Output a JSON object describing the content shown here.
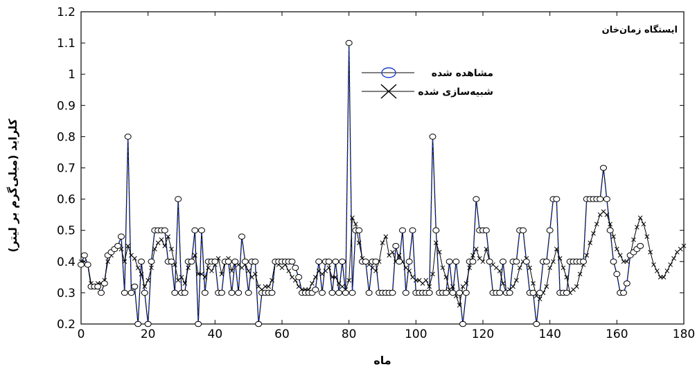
{
  "chart_data": {
    "type": "line",
    "title": "",
    "annotation": "ایستگاه زمان‌خان",
    "xlabel": "ماه",
    "ylabel": "کلراید (میلی‌گرم بر لیتر)",
    "xlim": [
      0,
      180
    ],
    "ylim": [
      0.2,
      1.2
    ],
    "x_ticks": [
      0,
      20,
      40,
      60,
      80,
      100,
      120,
      140,
      160,
      180
    ],
    "y_ticks": [
      0.2,
      0.3,
      0.4,
      0.5,
      0.6,
      0.7,
      0.8,
      0.9,
      1,
      1.1,
      1.2
    ],
    "x_tick_labels": [
      "0",
      "20",
      "40",
      "60",
      "80",
      "100",
      "120",
      "140",
      "160",
      "180"
    ],
    "y_tick_labels": [
      "0.2",
      "0.3",
      "0.4",
      "0.5",
      "0.6",
      "0.7",
      "0.8",
      "0.9",
      "1",
      "1.1",
      "1.2"
    ],
    "grid": false,
    "legend_position": "top-center",
    "series": [
      {
        "name": "مشاهده شده",
        "marker": "circle",
        "color": "#000000",
        "accent_color": "#1f3fd1",
        "x": [
          0,
          1,
          2,
          3,
          4,
          5,
          6,
          7,
          8,
          9,
          10,
          11,
          12,
          13,
          14,
          15,
          16,
          17,
          18,
          19,
          20,
          21,
          22,
          23,
          24,
          25,
          26,
          27,
          28,
          29,
          30,
          31,
          32,
          33,
          34,
          35,
          36,
          37,
          38,
          39,
          40,
          41,
          42,
          43,
          44,
          45,
          46,
          47,
          48,
          49,
          50,
          51,
          52,
          53,
          54,
          55,
          56,
          57,
          58,
          59,
          60,
          61,
          62,
          63,
          64,
          65,
          66,
          67,
          68,
          69,
          70,
          71,
          72,
          73,
          74,
          75,
          76,
          77,
          78,
          79,
          80,
          81,
          82,
          83,
          84,
          85,
          86,
          87,
          88,
          89,
          90,
          91,
          92,
          93,
          94,
          95,
          96,
          97,
          98,
          99,
          100,
          101,
          102,
          103,
          104,
          105,
          106,
          107,
          108,
          109,
          110,
          111,
          112,
          113,
          114,
          115,
          116,
          117,
          118,
          119,
          120,
          121,
          122,
          123,
          124,
          125,
          126,
          127,
          128,
          129,
          130,
          131,
          132,
          133,
          134,
          135,
          136,
          137,
          138,
          139,
          140,
          141,
          142,
          143,
          144,
          145,
          146,
          147,
          148,
          149,
          150,
          151,
          152,
          153,
          154,
          155,
          156,
          157,
          158,
          159,
          160,
          161,
          162,
          163,
          164,
          165,
          166,
          167
        ],
        "y": [
          0.39,
          0.42,
          0.39,
          0.32,
          0.32,
          0.32,
          0.3,
          0.33,
          0.42,
          0.43,
          0.44,
          0.45,
          0.48,
          0.3,
          0.8,
          0.3,
          0.32,
          0.2,
          0.4,
          0.3,
          0.2,
          0.4,
          0.5,
          0.5,
          0.5,
          0.5,
          0.4,
          0.4,
          0.3,
          0.6,
          0.3,
          0.3,
          0.4,
          0.4,
          0.5,
          0.2,
          0.5,
          0.3,
          0.4,
          0.4,
          0.4,
          0.3,
          0.3,
          0.4,
          0.4,
          0.3,
          0.4,
          0.3,
          0.48,
          0.4,
          0.3,
          0.4,
          0.4,
          0.2,
          0.3,
          0.3,
          0.3,
          0.3,
          0.4,
          0.4,
          0.4,
          0.4,
          0.4,
          0.4,
          0.38,
          0.35,
          0.3,
          0.3,
          0.3,
          0.3,
          0.31,
          0.4,
          0.3,
          0.4,
          0.4,
          0.3,
          0.4,
          0.3,
          0.4,
          0.3,
          1.1,
          0.3,
          0.5,
          0.5,
          0.4,
          0.4,
          0.3,
          0.4,
          0.4,
          0.3,
          0.3,
          0.3,
          0.3,
          0.3,
          0.45,
          0.4,
          0.5,
          0.3,
          0.4,
          0.5,
          0.3,
          0.3,
          0.3,
          0.3,
          0.3,
          0.8,
          0.5,
          0.3,
          0.3,
          0.3,
          0.4,
          0.3,
          0.4,
          0.3,
          0.2,
          0.3,
          0.4,
          0.4,
          0.6,
          0.5,
          0.5,
          0.5,
          0.4,
          0.3,
          0.3,
          0.3,
          0.4,
          0.3,
          0.3,
          0.4,
          0.4,
          0.5,
          0.5,
          0.4,
          0.3,
          0.3,
          0.2,
          0.3,
          0.4,
          0.4,
          0.5,
          0.6,
          0.6,
          0.3,
          0.3,
          0.3,
          0.4,
          0.4,
          0.4,
          0.4,
          0.4,
          0.6,
          0.6,
          0.6,
          0.6,
          0.6,
          0.7,
          0.6,
          0.5,
          0.4,
          0.36,
          0.3,
          0.3,
          0.33,
          0.42,
          0.43,
          0.44,
          0.45
        ]
      },
      {
        "name": "شبیه‌سازی شده",
        "marker": "x",
        "color": "#000000",
        "x": [
          0,
          1,
          2,
          3,
          4,
          5,
          6,
          7,
          8,
          9,
          10,
          11,
          12,
          13,
          14,
          15,
          16,
          17,
          18,
          19,
          20,
          21,
          22,
          23,
          24,
          25,
          26,
          27,
          28,
          29,
          30,
          31,
          32,
          33,
          34,
          35,
          36,
          37,
          38,
          39,
          40,
          41,
          42,
          43,
          44,
          45,
          46,
          47,
          48,
          49,
          50,
          51,
          52,
          53,
          54,
          55,
          56,
          57,
          58,
          59,
          60,
          61,
          62,
          63,
          64,
          65,
          66,
          67,
          68,
          69,
          70,
          71,
          72,
          73,
          74,
          75,
          76,
          77,
          78,
          79,
          80,
          81,
          82,
          83,
          84,
          85,
          86,
          87,
          88,
          89,
          90,
          91,
          92,
          93,
          94,
          95,
          96,
          97,
          98,
          99,
          100,
          101,
          102,
          103,
          104,
          105,
          106,
          107,
          108,
          109,
          110,
          111,
          112,
          113,
          114,
          115,
          116,
          117,
          118,
          119,
          120,
          121,
          122,
          123,
          124,
          125,
          126,
          127,
          128,
          129,
          130,
          131,
          132,
          133,
          134,
          135,
          136,
          137,
          138,
          139,
          140,
          141,
          142,
          143,
          144,
          145,
          146,
          147,
          148,
          149,
          150,
          151,
          152,
          153,
          154,
          155,
          156,
          157,
          158,
          159,
          160,
          161,
          162,
          163,
          164,
          165,
          166,
          167,
          168,
          169,
          170,
          171,
          172,
          173,
          174,
          175,
          176,
          177,
          178,
          179,
          180
        ],
        "y": [
          0.4,
          0.4,
          0.39,
          0.33,
          0.32,
          0.33,
          0.33,
          0.34,
          0.4,
          0.42,
          0.44,
          0.45,
          0.44,
          0.4,
          0.45,
          0.42,
          0.41,
          0.38,
          0.36,
          0.32,
          0.34,
          0.38,
          0.44,
          0.46,
          0.47,
          0.45,
          0.48,
          0.44,
          0.39,
          0.34,
          0.35,
          0.33,
          0.38,
          0.4,
          0.42,
          0.36,
          0.36,
          0.35,
          0.38,
          0.37,
          0.39,
          0.41,
          0.36,
          0.4,
          0.41,
          0.37,
          0.4,
          0.39,
          0.38,
          0.39,
          0.37,
          0.35,
          0.36,
          0.32,
          0.31,
          0.32,
          0.32,
          0.34,
          0.4,
          0.39,
          0.38,
          0.39,
          0.37,
          0.35,
          0.34,
          0.32,
          0.31,
          0.31,
          0.31,
          0.33,
          0.35,
          0.37,
          0.36,
          0.37,
          0.38,
          0.35,
          0.35,
          0.33,
          0.32,
          0.31,
          0.34,
          0.54,
          0.52,
          0.46,
          0.41,
          0.4,
          0.39,
          0.38,
          0.37,
          0.4,
          0.46,
          0.48,
          0.42,
          0.43,
          0.4,
          0.42,
          0.4,
          0.38,
          0.37,
          0.35,
          0.34,
          0.34,
          0.33,
          0.34,
          0.32,
          0.36,
          0.46,
          0.43,
          0.38,
          0.35,
          0.31,
          0.32,
          0.29,
          0.26,
          0.32,
          0.33,
          0.38,
          0.42,
          0.44,
          0.41,
          0.4,
          0.44,
          0.4,
          0.39,
          0.38,
          0.37,
          0.33,
          0.3,
          0.31,
          0.32,
          0.34,
          0.38,
          0.4,
          0.41,
          0.38,
          0.33,
          0.29,
          0.28,
          0.3,
          0.32,
          0.38,
          0.4,
          0.44,
          0.41,
          0.38,
          0.35,
          0.3,
          0.31,
          0.32,
          0.36,
          0.39,
          0.42,
          0.46,
          0.49,
          0.52,
          0.55,
          0.56,
          0.55,
          0.52,
          0.48,
          0.44,
          0.42,
          0.4,
          0.4,
          0.42,
          0.47,
          0.51,
          0.54,
          0.52,
          0.48,
          0.43,
          0.39,
          0.37,
          0.35,
          0.35,
          0.37,
          0.39,
          0.41,
          0.43,
          0.44,
          0.45
        ]
      }
    ]
  }
}
